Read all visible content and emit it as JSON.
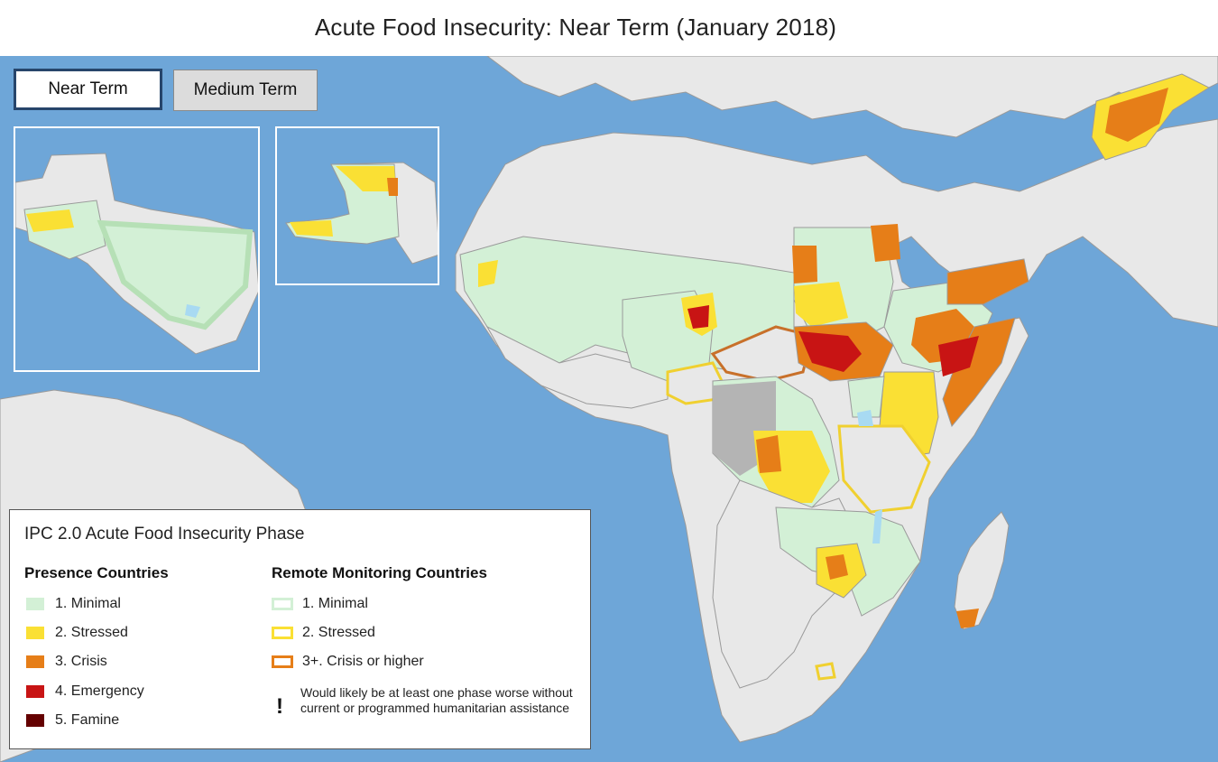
{
  "title": "Acute Food Insecurity: Near Term (January 2018)",
  "tabs": [
    {
      "label": "Near Term",
      "active": true
    },
    {
      "label": "Medium Term",
      "active": false
    }
  ],
  "colors": {
    "ocean": "#6ea6d8",
    "land": "#e8e8e8",
    "border": "#9a9a9a",
    "minimal": "#d3f0d6",
    "stressed": "#fae034",
    "crisis": "#e67e18",
    "emergency": "#c81414",
    "famine": "#640000",
    "no_data": "#b4b4b4",
    "water": "#a8daf2"
  },
  "legend": {
    "title": "IPC 2.0 Acute Food Insecurity Phase",
    "presence_heading": "Presence Countries",
    "presence_items": [
      {
        "label": "1. Minimal",
        "color": "#d3f0d6"
      },
      {
        "label": "2. Stressed",
        "color": "#fae034"
      },
      {
        "label": "3. Crisis",
        "color": "#e67e18"
      },
      {
        "label": "4. Emergency",
        "color": "#c81414"
      },
      {
        "label": "5. Famine",
        "color": "#640000"
      }
    ],
    "remote_heading": "Remote Monitoring Countries",
    "remote_items": [
      {
        "label": "1. Minimal",
        "color": "#d3f0d6"
      },
      {
        "label": "2. Stressed",
        "color": "#fae034"
      },
      {
        "label": "3+. Crisis or higher",
        "color": "#e67e18"
      }
    ],
    "assistance_symbol": "!",
    "assistance_note": "Would likely be at least one phase worse without current or programmed humanitarian assistance"
  }
}
